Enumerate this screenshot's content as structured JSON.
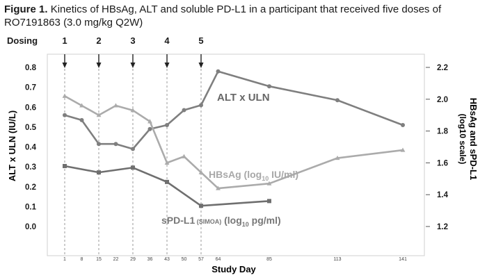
{
  "caption": {
    "label": "Figure 1.",
    "text": "Kinetics of HBsAg, ALT and soluble PD-L1 in a participant that received five doses of RO7191863 (3.0 mg/kg Q2W)"
  },
  "chart_data": {
    "type": "line",
    "xlabel": "Study Day",
    "ylabel_left": "ALT x ULN (IU/L)",
    "ylabel_right": "HBsAg and sPD-L1 (log10 scale)",
    "ylim_left": [
      0.0,
      0.8
    ],
    "ylim_right": [
      1.2,
      2.2
    ],
    "yticks_left": [
      "0.8",
      "0.7",
      "0.6",
      "0.5",
      "0.4",
      "0.3",
      "0.2",
      "0.1",
      "0.0"
    ],
    "yticks_right": [
      "2.2",
      "2.0",
      "1.8",
      "1.6",
      "1.4",
      "1.2"
    ],
    "xticks": [
      "1",
      "8",
      "15",
      "22",
      "29",
      "36",
      "43",
      "50",
      "57",
      "64",
      "85",
      "113",
      "141"
    ],
    "dosing": {
      "label": "Dosing",
      "days": [
        1,
        15,
        29,
        43,
        57
      ],
      "numbers": [
        "1",
        "2",
        "3",
        "4",
        "5"
      ]
    },
    "series": [
      {
        "name": "ALT x ULN",
        "axis": "left",
        "color": "#7f7f7f",
        "marker": "circle",
        "x": [
          1,
          8,
          15,
          22,
          29,
          36,
          43,
          50,
          57,
          64,
          85,
          113,
          141
        ],
        "y": [
          0.56,
          0.535,
          0.415,
          0.415,
          0.39,
          0.49,
          0.51,
          0.585,
          0.61,
          0.78,
          0.705,
          0.635,
          0.51
        ]
      },
      {
        "name": "HBsAg",
        "display_name": "HBsAg (log",
        "sub": "10",
        "unit": " IU/ml)",
        "axis": "right",
        "color": "#ababab",
        "marker": "triangle",
        "x": [
          1,
          8,
          15,
          22,
          29,
          36,
          43,
          50,
          57,
          64,
          85,
          113,
          141
        ],
        "y": [
          2.02,
          1.96,
          1.9,
          1.96,
          1.93,
          1.86,
          1.6,
          1.64,
          1.54,
          1.44,
          1.47,
          1.63,
          1.68
        ]
      },
      {
        "name": "sPD-L1",
        "display_name": "sPD-L1",
        "qualifier": " (SIMOA)",
        "display_rest": " (log",
        "sub": "10",
        "unit": " pg/ml)",
        "axis": "right",
        "color": "#6f6f6f",
        "marker": "square",
        "x": [
          1,
          15,
          29,
          43,
          57,
          85
        ],
        "y": [
          1.58,
          1.54,
          1.57,
          1.48,
          1.33,
          1.36
        ]
      }
    ]
  }
}
